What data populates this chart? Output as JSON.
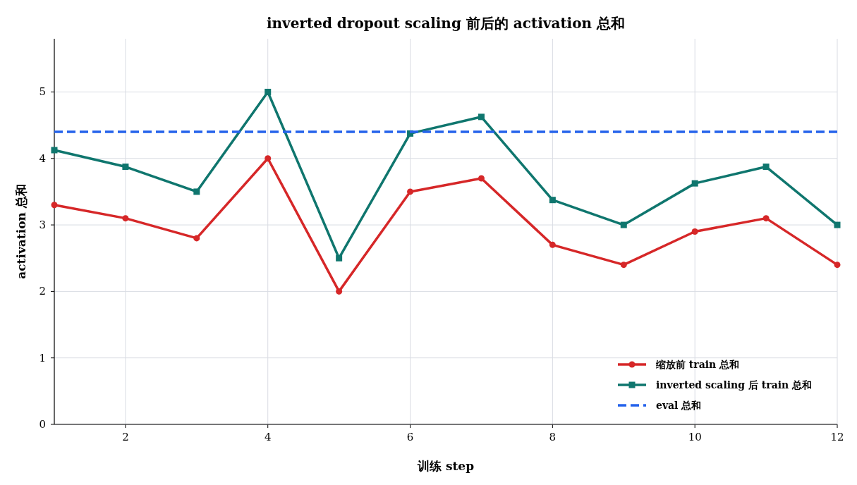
{
  "chart_data": {
    "type": "line",
    "title": "inverted dropout scaling 前后的 activation 总和",
    "xlabel": "训练 step",
    "ylabel": "activation 总和",
    "x": [
      1,
      2,
      3,
      4,
      5,
      6,
      7,
      8,
      9,
      10,
      11,
      12
    ],
    "series": [
      {
        "name": "缩放前 train 总和",
        "color": "#d62728",
        "marker": "circle",
        "line_style": "solid",
        "values": [
          3.3,
          3.1,
          2.8,
          4.0,
          2.0,
          3.5,
          3.7,
          2.7,
          2.4,
          2.9,
          3.1,
          2.4
        ]
      },
      {
        "name": "inverted scaling 后 train 总和",
        "color": "#0f766e",
        "marker": "square",
        "line_style": "solid",
        "values": [
          4.125,
          3.875,
          3.5,
          5.0,
          2.5,
          4.375,
          4.625,
          3.375,
          3.0,
          3.625,
          3.875,
          3.0
        ]
      },
      {
        "name": "eval 总和",
        "color": "#2563eb",
        "marker": "none",
        "line_style": "dashed",
        "values": [
          4.4,
          4.4,
          4.4,
          4.4,
          4.4,
          4.4,
          4.4,
          4.4,
          4.4,
          4.4,
          4.4,
          4.4
        ]
      }
    ],
    "xlim": [
      1,
      12
    ],
    "xticks": [
      2,
      4,
      6,
      8,
      10,
      12
    ],
    "ylim": [
      0,
      5.8
    ],
    "yticks": [
      0,
      1,
      2,
      3,
      4,
      5
    ],
    "grid": true,
    "legend": "bottom right"
  }
}
